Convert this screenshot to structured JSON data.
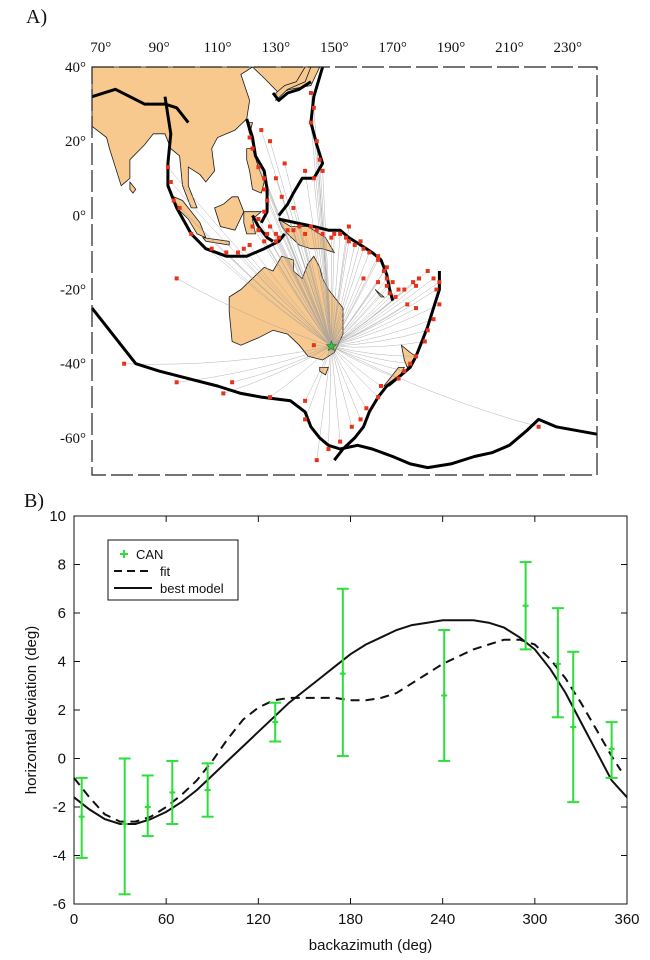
{
  "figure": {
    "panel_a_label": "A)",
    "panel_b_label": "B)"
  },
  "colors": {
    "land": "#f8c98f",
    "plate_boundary": "#000000",
    "event": "#e8321a",
    "station": "#36c24a",
    "ray": "#9a9a9a",
    "errorbar": "#2ede3a",
    "fit": "#111111",
    "model": "#111111"
  },
  "map": {
    "type": "map",
    "lon_labels": [
      "70°",
      "90°",
      "110°",
      "130°",
      "150°",
      "170°",
      "190°",
      "210°",
      "230°"
    ],
    "lon_values": [
      70,
      90,
      110,
      130,
      150,
      170,
      190,
      210,
      230
    ],
    "lat_labels": [
      "40°",
      "20°",
      "0°",
      "-20°",
      "-40°",
      "-60°"
    ],
    "lat_values": [
      40,
      20,
      0,
      -20,
      -40,
      -60
    ],
    "lon_range": [
      67,
      240
    ],
    "lat_range": [
      -70,
      40
    ],
    "station": {
      "name": "CAN",
      "lon": 149.0,
      "lat": -35.3,
      "icon": "star-icon"
    },
    "events": [
      [
        121,
        21
      ],
      [
        122,
        18
      ],
      [
        124,
        13
      ],
      [
        126,
        10
      ],
      [
        126,
        7
      ],
      [
        127,
        4
      ],
      [
        126,
        1
      ],
      [
        124,
        -1
      ],
      [
        122,
        -3
      ],
      [
        128,
        -3
      ],
      [
        130,
        -5
      ],
      [
        134,
        -4
      ],
      [
        138,
        -3
      ],
      [
        142,
        -3
      ],
      [
        146,
        -5
      ],
      [
        149,
        -6
      ],
      [
        152,
        -5
      ],
      [
        154,
        -6
      ],
      [
        155,
        -7
      ],
      [
        157,
        -8
      ],
      [
        160,
        -9
      ],
      [
        162,
        -10
      ],
      [
        165,
        -12
      ],
      [
        167,
        -15
      ],
      [
        168,
        -17
      ],
      [
        168,
        -19
      ],
      [
        169,
        -21
      ],
      [
        171,
        -22
      ],
      [
        174,
        -20
      ],
      [
        177,
        -18
      ],
      [
        179,
        -17
      ],
      [
        182,
        -15
      ],
      [
        184,
        -17
      ],
      [
        185,
        -20
      ],
      [
        186,
        -24
      ],
      [
        184,
        -28
      ],
      [
        182,
        -31
      ],
      [
        181,
        -34
      ],
      [
        178,
        -38
      ],
      [
        176,
        -40
      ],
      [
        174,
        -42
      ],
      [
        172,
        -44
      ],
      [
        166,
        -46
      ],
      [
        165,
        -49
      ],
      [
        161,
        -52
      ],
      [
        159,
        -55
      ],
      [
        156,
        -57
      ],
      [
        152,
        -61
      ],
      [
        148,
        -63
      ],
      [
        144,
        -66
      ],
      [
        101,
        -5
      ],
      [
        97,
        2
      ],
      [
        95,
        4
      ],
      [
        94,
        9
      ],
      [
        93,
        13
      ],
      [
        108,
        -9
      ],
      [
        113,
        -10
      ],
      [
        117,
        -10
      ],
      [
        119,
        -9
      ],
      [
        121,
        -8
      ],
      [
        126,
        -7
      ],
      [
        130,
        -7
      ],
      [
        96,
        -17
      ],
      [
        78,
        -40
      ],
      [
        96,
        -45
      ],
      [
        112,
        -48
      ],
      [
        128,
        -49
      ],
      [
        140,
        -55
      ],
      [
        143,
        -35
      ],
      [
        140,
        -50
      ],
      [
        142,
        33
      ],
      [
        143,
        29
      ],
      [
        142,
        25
      ],
      [
        144,
        20
      ],
      [
        145,
        15
      ],
      [
        146,
        12
      ],
      [
        143,
        10
      ],
      [
        140,
        12
      ],
      [
        150,
        -5
      ],
      [
        155,
        -3
      ],
      [
        159,
        -7
      ],
      [
        165,
        -11
      ],
      [
        168,
        -14
      ],
      [
        170,
        -18
      ],
      [
        125,
        23
      ],
      [
        128,
        20
      ],
      [
        133,
        14
      ],
      [
        130,
        10
      ],
      [
        132,
        5
      ],
      [
        136,
        2
      ],
      [
        124,
        -4
      ],
      [
        127,
        -5
      ],
      [
        131,
        -6
      ],
      [
        136,
        -4
      ],
      [
        140,
        -5
      ],
      [
        144,
        -4
      ],
      [
        172,
        -20
      ],
      [
        175,
        -24
      ],
      [
        178,
        -25
      ],
      [
        186,
        -18
      ],
      [
        220,
        -57
      ],
      [
        115,
        -45
      ],
      [
        178,
        -19
      ],
      [
        165,
        -18
      ],
      [
        160,
        -17
      ]
    ]
  },
  "chart_data": {
    "type": "scatter",
    "xlabel": "backazimuth (deg)",
    "ylabel": "horizontal deviation (deg)",
    "xlim": [
      0,
      360
    ],
    "ylim": [
      -6,
      10
    ],
    "x_ticks": [
      0,
      60,
      120,
      180,
      240,
      300,
      360
    ],
    "y_ticks": [
      -6,
      -4,
      -2,
      0,
      2,
      4,
      6,
      8,
      10
    ],
    "x_tick_labels": [
      "0",
      "60",
      "120",
      "180",
      "240",
      "300",
      "360"
    ],
    "y_tick_labels": [
      "-6",
      "-4",
      "-2",
      "0",
      "2",
      "4",
      "6",
      "8",
      "10"
    ],
    "grid": false,
    "legend": "top-left",
    "series": [
      {
        "name": "CAN",
        "style": "errorbar",
        "points": [
          {
            "x": 5,
            "y": -2.4,
            "low": -4.1,
            "high": -0.8
          },
          {
            "x": 33,
            "y": -2.7,
            "low": -5.6,
            "high": 0.0
          },
          {
            "x": 48,
            "y": -2.0,
            "low": -3.2,
            "high": -0.7
          },
          {
            "x": 64,
            "y": -1.4,
            "low": -2.7,
            "high": -0.1
          },
          {
            "x": 87,
            "y": -1.3,
            "low": -2.4,
            "high": -0.2
          },
          {
            "x": 131,
            "y": 1.5,
            "low": 0.7,
            "high": 2.3
          },
          {
            "x": 175,
            "y": 3.5,
            "low": 0.1,
            "high": 7.0
          },
          {
            "x": 241,
            "y": 2.6,
            "low": -0.1,
            "high": 5.3
          },
          {
            "x": 294,
            "y": 6.3,
            "low": 4.5,
            "high": 8.1
          },
          {
            "x": 315,
            "y": 3.9,
            "low": 1.7,
            "high": 6.2
          },
          {
            "x": 325,
            "y": 1.3,
            "low": -1.8,
            "high": 4.4
          },
          {
            "x": 350,
            "y": 0.4,
            "low": -0.8,
            "high": 1.5
          }
        ]
      },
      {
        "name": "fit",
        "style": "dashed",
        "x": [
          0,
          10,
          20,
          30,
          40,
          50,
          60,
          70,
          80,
          90,
          100,
          110,
          120,
          130,
          140,
          150,
          160,
          170,
          180,
          190,
          200,
          210,
          220,
          230,
          240,
          250,
          260,
          270,
          280,
          290,
          300,
          310,
          320,
          330,
          340,
          350,
          356
        ],
        "y": [
          -0.8,
          -1.6,
          -2.3,
          -2.6,
          -2.6,
          -2.4,
          -2.0,
          -1.5,
          -0.9,
          -0.1,
          0.8,
          1.6,
          2.1,
          2.4,
          2.5,
          2.5,
          2.5,
          2.5,
          2.4,
          2.4,
          2.5,
          2.7,
          3.1,
          3.5,
          3.9,
          4.2,
          4.5,
          4.7,
          4.9,
          4.9,
          4.7,
          4.1,
          3.3,
          2.3,
          1.2,
          0.1,
          -0.5
        ]
      },
      {
        "name": "best model",
        "style": "solid",
        "x": [
          0,
          10,
          20,
          30,
          40,
          50,
          60,
          70,
          80,
          90,
          100,
          110,
          120,
          130,
          140,
          150,
          160,
          170,
          180,
          190,
          200,
          210,
          220,
          230,
          240,
          250,
          260,
          270,
          280,
          290,
          300,
          310,
          320,
          330,
          340,
          350,
          360
        ],
        "y": [
          -1.6,
          -2.1,
          -2.5,
          -2.7,
          -2.7,
          -2.5,
          -2.2,
          -1.8,
          -1.3,
          -0.7,
          -0.1,
          0.5,
          1.1,
          1.7,
          2.3,
          2.8,
          3.3,
          3.8,
          4.3,
          4.7,
          5.0,
          5.3,
          5.5,
          5.6,
          5.7,
          5.7,
          5.7,
          5.6,
          5.4,
          5.0,
          4.5,
          3.7,
          2.7,
          1.5,
          0.3,
          -0.9,
          -1.6
        ]
      }
    ]
  }
}
